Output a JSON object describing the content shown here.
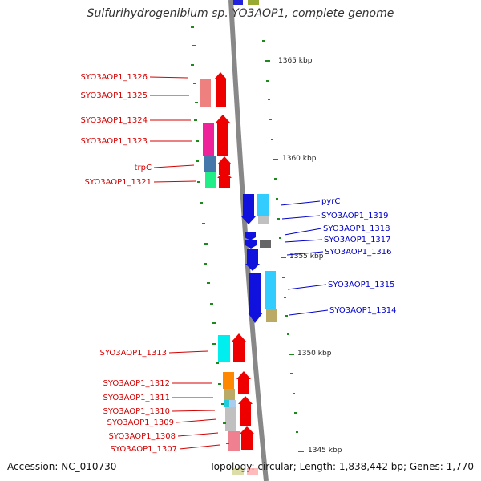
{
  "title": "Sulfurihydrogenibium sp. YO3AOP1, complete genome",
  "footer": {
    "accession": "Accession: NC_010730",
    "topology": "Topology: circular; Length: 1,838,442 bp; Genes: 1,770"
  },
  "colors": {
    "backbone": "#8a8a8a",
    "tick": "#1e8a1e",
    "left_label": "#d40000",
    "right_label": "#0000c8"
  },
  "scale_labels": [
    "1365 kbp",
    "1360 kbp",
    "1355 kbp",
    "1350 kbp",
    "1345 kbp"
  ],
  "left_genes": [
    {
      "label": "SYO3AOP1_1326"
    },
    {
      "label": "SYO3AOP1_1325"
    },
    {
      "label": "SYO3AOP1_1324"
    },
    {
      "label": "SYO3AOP1_1323"
    },
    {
      "label": "trpC"
    },
    {
      "label": "SYO3AOP1_1321"
    },
    {
      "label": "SYO3AOP1_1313"
    },
    {
      "label": "SYO3AOP1_1312"
    },
    {
      "label": "SYO3AOP1_1311"
    },
    {
      "label": "SYO3AOP1_1310"
    },
    {
      "label": "SYO3AOP1_1309"
    },
    {
      "label": "SYO3AOP1_1308"
    },
    {
      "label": "SYO3AOP1_1307"
    }
  ],
  "right_genes": [
    {
      "label": "pyrC"
    },
    {
      "label": "SYO3AOP1_1319"
    },
    {
      "label": "SYO3AOP1_1318"
    },
    {
      "label": "SYO3AOP1_1317"
    },
    {
      "label": "SYO3AOP1_1316"
    },
    {
      "label": "SYO3AOP1_1315"
    },
    {
      "label": "SYO3AOP1_1314"
    }
  ]
}
